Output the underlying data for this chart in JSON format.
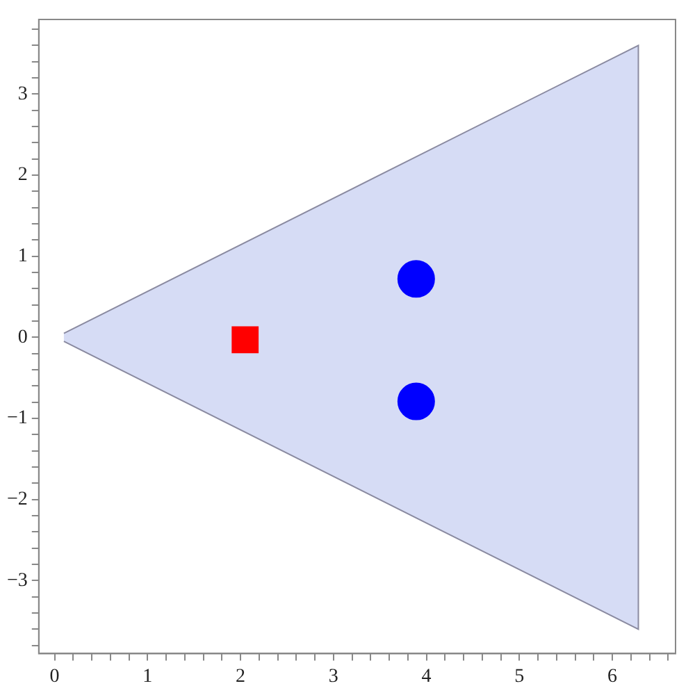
{
  "chart_data": {
    "type": "scatter",
    "series": [
      {
        "type": "area",
        "color": "#ccd3f3",
        "x": [
          0.1,
          6.28,
          6.28,
          0.1
        ],
        "values": [
          0.05,
          3.6,
          -3.6,
          -0.05
        ]
      },
      {
        "type": "scatter",
        "marker": "square",
        "color": "#ff0000",
        "x": [
          2.05
        ],
        "values": [
          -0.03
        ]
      },
      {
        "type": "scatter",
        "marker": "circle",
        "color": "#0000ff",
        "x": [
          3.89,
          3.89
        ],
        "values": [
          0.72,
          -0.79
        ]
      }
    ],
    "xlim": [
      -0.17,
      6.68
    ],
    "ylim": [
      -3.9,
      3.92
    ],
    "xticks": [
      0,
      {
        "value": 0.2,
        "label": null
      },
      {
        "value": 0.4,
        "label": null
      },
      {
        "value": 0.6,
        "label": null
      },
      {
        "value": 0.8,
        "label": null
      },
      1,
      {
        "value": 1.2,
        "label": null
      },
      {
        "value": 1.4,
        "label": null
      },
      {
        "value": 1.6,
        "label": null
      },
      {
        "value": 1.8,
        "label": null
      },
      2,
      {
        "value": 2.2,
        "label": null
      },
      {
        "value": 2.4,
        "label": null
      },
      {
        "value": 2.6,
        "label": null
      },
      {
        "value": 2.8,
        "label": null
      },
      3,
      {
        "value": 3.2,
        "label": null
      },
      {
        "value": 3.4,
        "label": null
      },
      {
        "value": 3.6,
        "label": null
      },
      {
        "value": 3.8,
        "label": null
      },
      4,
      {
        "value": 4.2,
        "label": null
      },
      {
        "value": 4.4,
        "label": null
      },
      {
        "value": 4.6,
        "label": null
      },
      {
        "value": 4.8,
        "label": null
      },
      5,
      {
        "value": 5.2,
        "label": null
      },
      {
        "value": 5.4,
        "label": null
      },
      {
        "value": 5.6,
        "label": null
      },
      {
        "value": 5.8,
        "label": null
      },
      6,
      {
        "value": 6.2,
        "label": null
      },
      {
        "value": 6.4,
        "label": null
      },
      {
        "value": 6.6,
        "label": null
      }
    ],
    "yticks": [
      {
        "value": -3.8,
        "label": null
      },
      {
        "value": -3.6,
        "label": null
      },
      {
        "value": -3.4,
        "label": null
      },
      {
        "value": -3.2,
        "label": null
      },
      -3,
      {
        "value": -2.8,
        "label": null
      },
      {
        "value": -2.6,
        "label": null
      },
      {
        "value": -2.4,
        "label": null
      },
      {
        "value": -2.2,
        "label": null
      },
      -2,
      {
        "value": -1.8,
        "label": null
      },
      {
        "value": -1.6,
        "label": null
      },
      {
        "value": -1.4,
        "label": null
      },
      {
        "value": -1.2,
        "label": null
      },
      -1,
      {
        "value": -0.8,
        "label": null
      },
      {
        "value": -0.6,
        "label": null
      },
      {
        "value": -0.4,
        "label": null
      },
      {
        "value": -0.2,
        "label": null
      },
      0,
      {
        "value": 0.2,
        "label": null
      },
      {
        "value": 0.4,
        "label": null
      },
      {
        "value": 0.6,
        "label": null
      },
      {
        "value": 0.8,
        "label": null
      },
      1,
      {
        "value": 1.2,
        "label": null
      },
      {
        "value": 1.4,
        "label": null
      },
      {
        "value": 1.6,
        "label": null
      },
      {
        "value": 1.8,
        "label": null
      },
      2,
      {
        "value": 2.2,
        "label": null
      },
      {
        "value": 2.4,
        "label": null
      },
      {
        "value": 2.6,
        "label": null
      },
      {
        "value": 2.8,
        "label": null
      },
      3,
      {
        "value": 3.2,
        "label": null
      },
      {
        "value": 3.4,
        "label": null
      },
      {
        "value": 3.6,
        "label": null
      },
      {
        "value": 3.8,
        "label": null
      }
    ],
    "grid": false,
    "legend": false
  }
}
